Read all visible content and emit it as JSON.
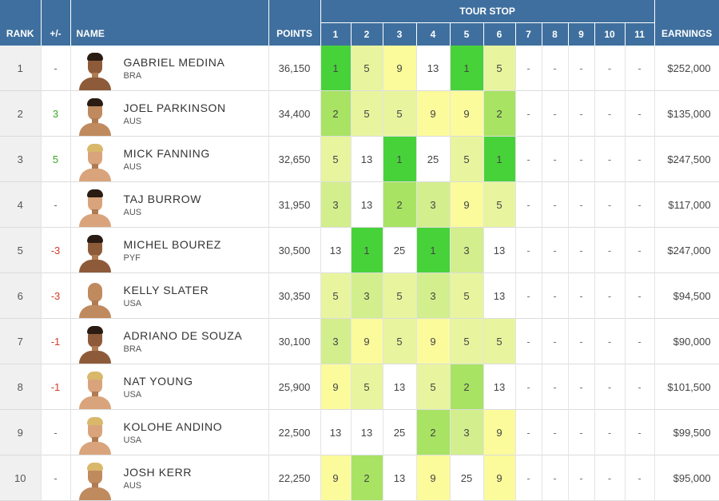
{
  "headers": {
    "rank": "RANK",
    "change": "+/-",
    "name": "NAME",
    "points": "POINTS",
    "tour_stop": "TOUR STOP",
    "stops": [
      "1",
      "2",
      "3",
      "4",
      "5",
      "6",
      "7",
      "8",
      "9",
      "10",
      "11"
    ],
    "earnings": "EARNINGS"
  },
  "placeholder": "-",
  "rows": [
    {
      "rank": "1",
      "change": "-",
      "change_dir": "none",
      "name": "GABRIEL MEDINA",
      "country": "BRA",
      "points": "36,150",
      "results": [
        "1",
        "5",
        "9",
        "13",
        "1",
        "5"
      ],
      "earnings": "$252,000",
      "avatar": "dark"
    },
    {
      "rank": "2",
      "change": "3",
      "change_dir": "up",
      "name": "JOEL PARKINSON",
      "country": "AUS",
      "points": "34,400",
      "results": [
        "2",
        "5",
        "5",
        "9",
        "9",
        "2"
      ],
      "earnings": "$135,000",
      "avatar": "normal"
    },
    {
      "rank": "3",
      "change": "5",
      "change_dir": "up",
      "name": "MICK FANNING",
      "country": "AUS",
      "points": "32,650",
      "results": [
        "5",
        "13",
        "1",
        "25",
        "5",
        "1"
      ],
      "earnings": "$247,500",
      "avatar": "blond light"
    },
    {
      "rank": "4",
      "change": "-",
      "change_dir": "none",
      "name": "TAJ BURROW",
      "country": "AUS",
      "points": "31,950",
      "results": [
        "3",
        "13",
        "2",
        "3",
        "9",
        "5"
      ],
      "earnings": "$117,000",
      "avatar": "light"
    },
    {
      "rank": "5",
      "change": "-3",
      "change_dir": "down",
      "name": "MICHEL BOUREZ",
      "country": "PYF",
      "points": "30,500",
      "results": [
        "13",
        "1",
        "25",
        "1",
        "3",
        "13"
      ],
      "earnings": "$247,000",
      "avatar": "dark"
    },
    {
      "rank": "6",
      "change": "-3",
      "change_dir": "down",
      "name": "KELLY SLATER",
      "country": "USA",
      "points": "30,350",
      "results": [
        "5",
        "3",
        "5",
        "3",
        "5",
        "13"
      ],
      "earnings": "$94,500",
      "avatar": "bald"
    },
    {
      "rank": "7",
      "change": "-1",
      "change_dir": "down",
      "name": "ADRIANO DE SOUZA",
      "country": "BRA",
      "points": "30,100",
      "results": [
        "3",
        "9",
        "5",
        "9",
        "5",
        "5"
      ],
      "earnings": "$90,000",
      "avatar": "dark"
    },
    {
      "rank": "8",
      "change": "-1",
      "change_dir": "down",
      "name": "NAT YOUNG",
      "country": "USA",
      "points": "25,900",
      "results": [
        "9",
        "5",
        "13",
        "5",
        "2",
        "13"
      ],
      "earnings": "$101,500",
      "avatar": "blond light"
    },
    {
      "rank": "9",
      "change": "-",
      "change_dir": "none",
      "name": "KOLOHE ANDINO",
      "country": "USA",
      "points": "22,500",
      "results": [
        "13",
        "13",
        "25",
        "2",
        "3",
        "9"
      ],
      "earnings": "$99,500",
      "avatar": "blond light"
    },
    {
      "rank": "10",
      "change": "-",
      "change_dir": "none",
      "name": "JOSH KERR",
      "country": "AUS",
      "points": "22,250",
      "results": [
        "9",
        "2",
        "13",
        "9",
        "25",
        "9"
      ],
      "earnings": "$95,000",
      "avatar": "blond"
    }
  ],
  "colors": {
    "header": "#3f6f9e",
    "result_1": "#48d23a",
    "result_2": "#a8e364",
    "result_3": "#d3ee8c",
    "result_5": "#e8f59e",
    "result_9": "#fbfb9c",
    "change_up": "#3aa625",
    "change_down": "#d43a2a"
  }
}
